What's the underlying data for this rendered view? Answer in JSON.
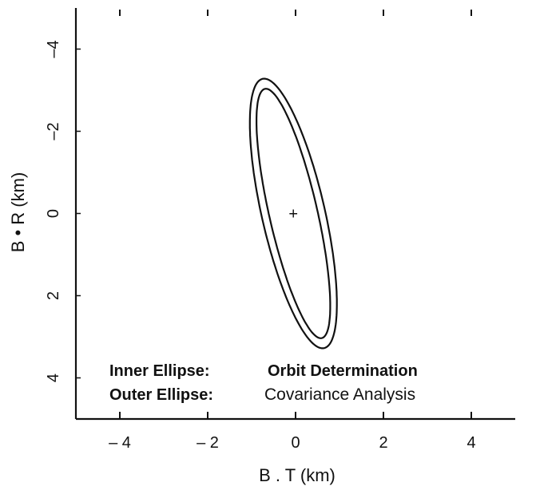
{
  "chart_data": {
    "type": "line",
    "xlabel": "B . T (km)",
    "ylabel": "B • R (km)",
    "xlim": [
      -5,
      5
    ],
    "ylim": [
      5,
      -5
    ],
    "x_ticks": [
      -4,
      -2,
      0,
      2,
      4
    ],
    "x_tick_labels": [
      "– 4",
      "– 2",
      "0",
      "2",
      "4"
    ],
    "y_ticks": [
      -4,
      -2,
      0,
      2,
      4
    ],
    "y_tick_labels": [
      "–4",
      "–2",
      "0",
      "2",
      "4"
    ],
    "grid": false,
    "center_marker": {
      "x": -0.05,
      "y": 0,
      "label": "+"
    },
    "series": [
      {
        "name": "Inner Ellipse",
        "center": [
          -0.05,
          0
        ],
        "semi_major": 3.1,
        "semi_minor": 0.55,
        "tilt_deg": -12
      },
      {
        "name": "Outer Ellipse",
        "center": [
          -0.05,
          0
        ],
        "semi_major": 3.35,
        "semi_minor": 0.72,
        "tilt_deg": -12
      }
    ],
    "annotations": [
      {
        "label": "Inner Ellipse:",
        "value": "Orbit Determination"
      },
      {
        "label": "Outer Ellipse:",
        "value": "Covariance Analysis"
      }
    ]
  }
}
